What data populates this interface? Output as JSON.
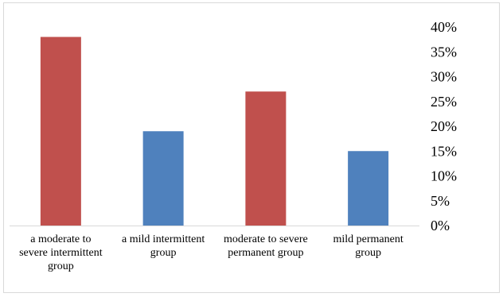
{
  "chart_data": {
    "type": "bar",
    "categories": [
      [
        "a moderate to",
        "severe intermittent",
        "group"
      ],
      [
        "a mild intermittent",
        "group"
      ],
      [
        "moderate to severe",
        "permanent group"
      ],
      [
        "mild permanent",
        "group"
      ]
    ],
    "values": [
      38,
      19,
      27,
      15
    ],
    "colors": [
      "#c0504d",
      "#4f81bd",
      "#c0504d",
      "#4f81bd"
    ],
    "ylim": [
      0,
      40
    ],
    "yticks": [
      "0%",
      "5%",
      "10%",
      "15%",
      "20%",
      "25%",
      "30%",
      "35%",
      "40%"
    ],
    "y_axis_position": "right",
    "grid": false,
    "legend": "none",
    "title": "",
    "xlabel": "",
    "ylabel": ""
  }
}
